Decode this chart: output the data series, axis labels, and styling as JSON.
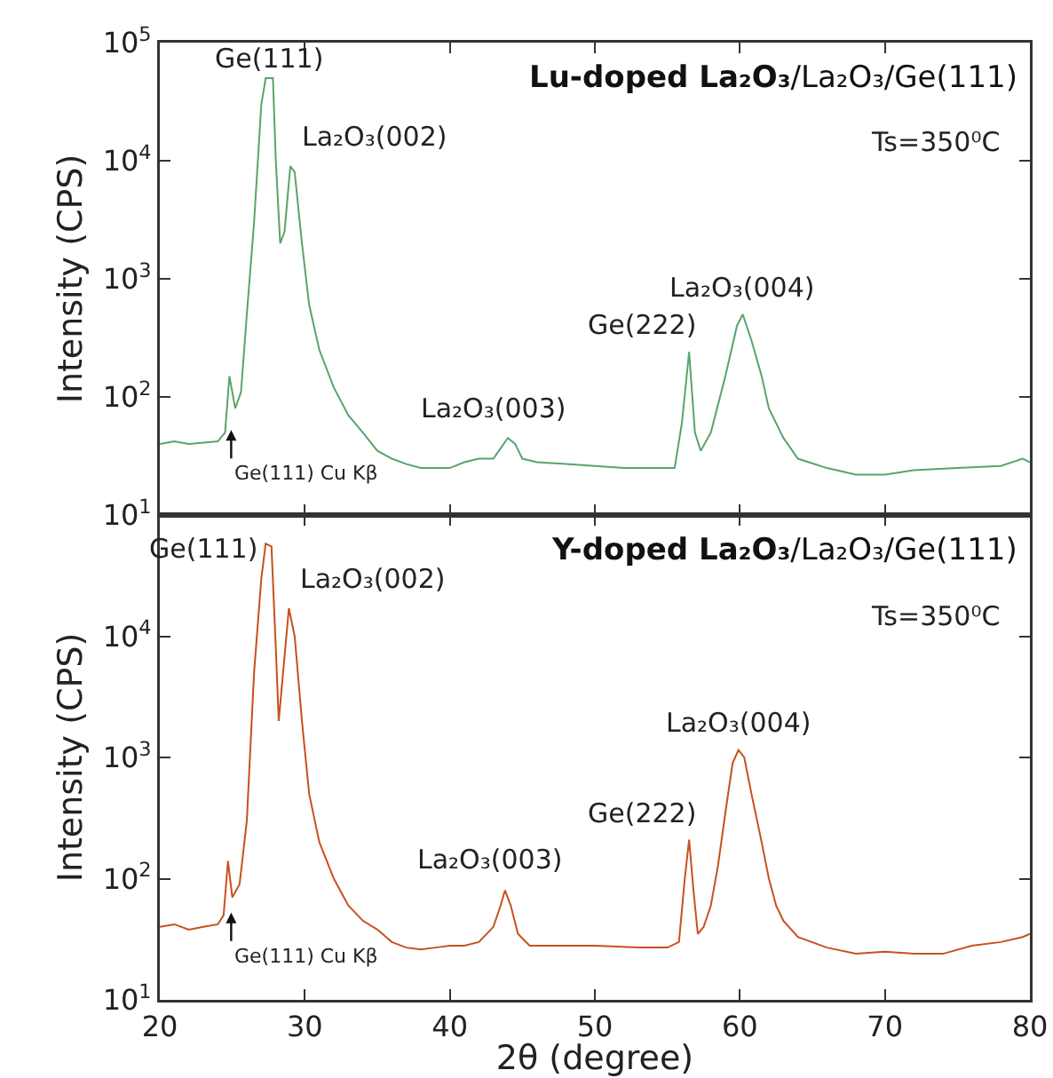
{
  "chart_data": [
    {
      "type": "line",
      "title": "Lu-doped La₂O₃/La₂O₃/Ge(111)",
      "ylabel": "Intensity (CPS)",
      "log": true,
      "tick_labels": "y",
      "xlim": [
        20,
        80
      ],
      "xticks": [
        20,
        30,
        40,
        50,
        60,
        70,
        80
      ],
      "ylim": [
        10,
        100000
      ],
      "yticks": [
        {
          "value": 10,
          "label": "10$^{1}$"
        },
        {
          "value": 100,
          "label": "10$^{2}$"
        },
        {
          "value": 1000,
          "label": "10$^{3}$"
        },
        {
          "value": 10000,
          "label": "10$^{4}$"
        },
        {
          "value": 100000,
          "label": "10$^{5}$"
        }
      ],
      "annotations": [
        {
          "text": "Ge(111)",
          "x": 27.5,
          "y": 50000
        },
        {
          "text": "La₂O₃(002)",
          "x": 29,
          "y": 9000
        },
        {
          "text": "La₂O₃(003)",
          "x": 44,
          "y": 45
        },
        {
          "text": "Ge(222)",
          "x": 56.5,
          "y": 240
        },
        {
          "text": "La₂O₃(004)",
          "x": 60.2,
          "y": 500
        },
        "Ge(111) Cu Kβ",
        "Ts=350⁰C"
      ],
      "series": [
        {
          "color": "#5aa36a",
          "x": [
            20,
            21,
            22,
            23,
            24,
            24.5,
            24.8,
            25.2,
            25.6,
            26,
            26.5,
            27,
            27.3,
            27.8,
            28,
            28.3,
            28.6,
            29,
            29.3,
            29.8,
            30.3,
            31,
            32,
            33,
            34,
            35,
            36,
            37,
            38,
            39,
            40,
            41,
            42,
            43,
            44,
            44.5,
            45,
            46,
            48,
            50,
            52,
            54,
            55.5,
            56,
            56.5,
            56.9,
            57.3,
            58,
            59,
            59.8,
            60.2,
            60.8,
            61.5,
            62,
            63,
            64,
            66,
            68,
            70,
            72,
            75,
            78,
            79.5,
            80
          ],
          "values": [
            40,
            42,
            40,
            41,
            42,
            50,
            150,
            80,
            110,
            500,
            3000,
            30000,
            50000,
            50000,
            10000,
            2000,
            2500,
            9000,
            8000,
            2000,
            600,
            250,
            120,
            70,
            50,
            35,
            30,
            27,
            25,
            25,
            25,
            28,
            30,
            30,
            45,
            40,
            30,
            28,
            27,
            26,
            25,
            25,
            25,
            60,
            240,
            50,
            35,
            50,
            150,
            400,
            500,
            300,
            150,
            80,
            45,
            30,
            25,
            22,
            22,
            24,
            25,
            26,
            30,
            28
          ]
        }
      ]
    },
    {
      "type": "line",
      "title": "Y-doped La₂O₃/La₂O₃/Ge(111)",
      "xlabel": "2θ (degree)",
      "ylabel": "Intensity (CPS)",
      "log": true,
      "xlim": [
        20,
        80
      ],
      "xticks": [
        20,
        30,
        40,
        50,
        60,
        70,
        80
      ],
      "ylim": [
        10,
        100000
      ],
      "yticks": [
        {
          "value": 10,
          "label": "10$^{1}$"
        },
        {
          "value": 100,
          "label": "10$^{2}$"
        },
        {
          "value": 1000,
          "label": "10$^{3}$"
        },
        {
          "value": 10000,
          "label": "10$^{4}$"
        },
        {
          "value": 100000,
          "label": null
        }
      ],
      "annotations": [
        {
          "text": "Ge(111)",
          "x": 27.5,
          "y": 58000
        },
        {
          "text": "La₂O₃(002)",
          "x": 28.9,
          "y": 17000
        },
        {
          "text": "La₂O₃(003)",
          "x": 43.8,
          "y": 80
        },
        {
          "text": "Ge(222)",
          "x": 56.5,
          "y": 210
        },
        {
          "text": "La₂O₃(004)",
          "x": 59.9,
          "y": 1150
        },
        "Ge(111) Cu Kβ",
        "Ts=350⁰C"
      ],
      "series": [
        {
          "color": "#c8501e",
          "x": [
            20,
            21,
            22,
            23,
            24,
            24.4,
            24.7,
            25,
            25.5,
            26,
            26.5,
            27,
            27.3,
            27.7,
            28,
            28.2,
            28.5,
            28.9,
            29.3,
            29.8,
            30.3,
            31,
            32,
            33,
            34,
            35,
            36,
            37,
            38,
            39,
            40,
            41,
            42,
            43,
            43.5,
            43.8,
            44.2,
            44.7,
            45.5,
            47,
            50,
            53,
            55,
            55.8,
            56.2,
            56.5,
            56.8,
            57.1,
            57.5,
            58,
            58.5,
            59,
            59.5,
            59.9,
            60.3,
            60.8,
            61.5,
            62,
            62.5,
            63,
            64,
            66,
            68,
            70,
            72,
            74,
            76,
            78,
            79.5,
            80
          ],
          "values": [
            40,
            42,
            38,
            40,
            42,
            50,
            140,
            70,
            90,
            300,
            5000,
            30000,
            58000,
            55000,
            8000,
            2000,
            5000,
            17000,
            10000,
            2000,
            500,
            200,
            100,
            60,
            45,
            38,
            30,
            27,
            26,
            27,
            28,
            28,
            30,
            40,
            60,
            80,
            60,
            35,
            28,
            28,
            28,
            27,
            27,
            30,
            100,
            210,
            80,
            35,
            40,
            60,
            130,
            350,
            900,
            1150,
            1000,
            500,
            200,
            100,
            60,
            45,
            33,
            27,
            24,
            25,
            24,
            24,
            28,
            30,
            33,
            35
          ]
        }
      ]
    }
  ]
}
